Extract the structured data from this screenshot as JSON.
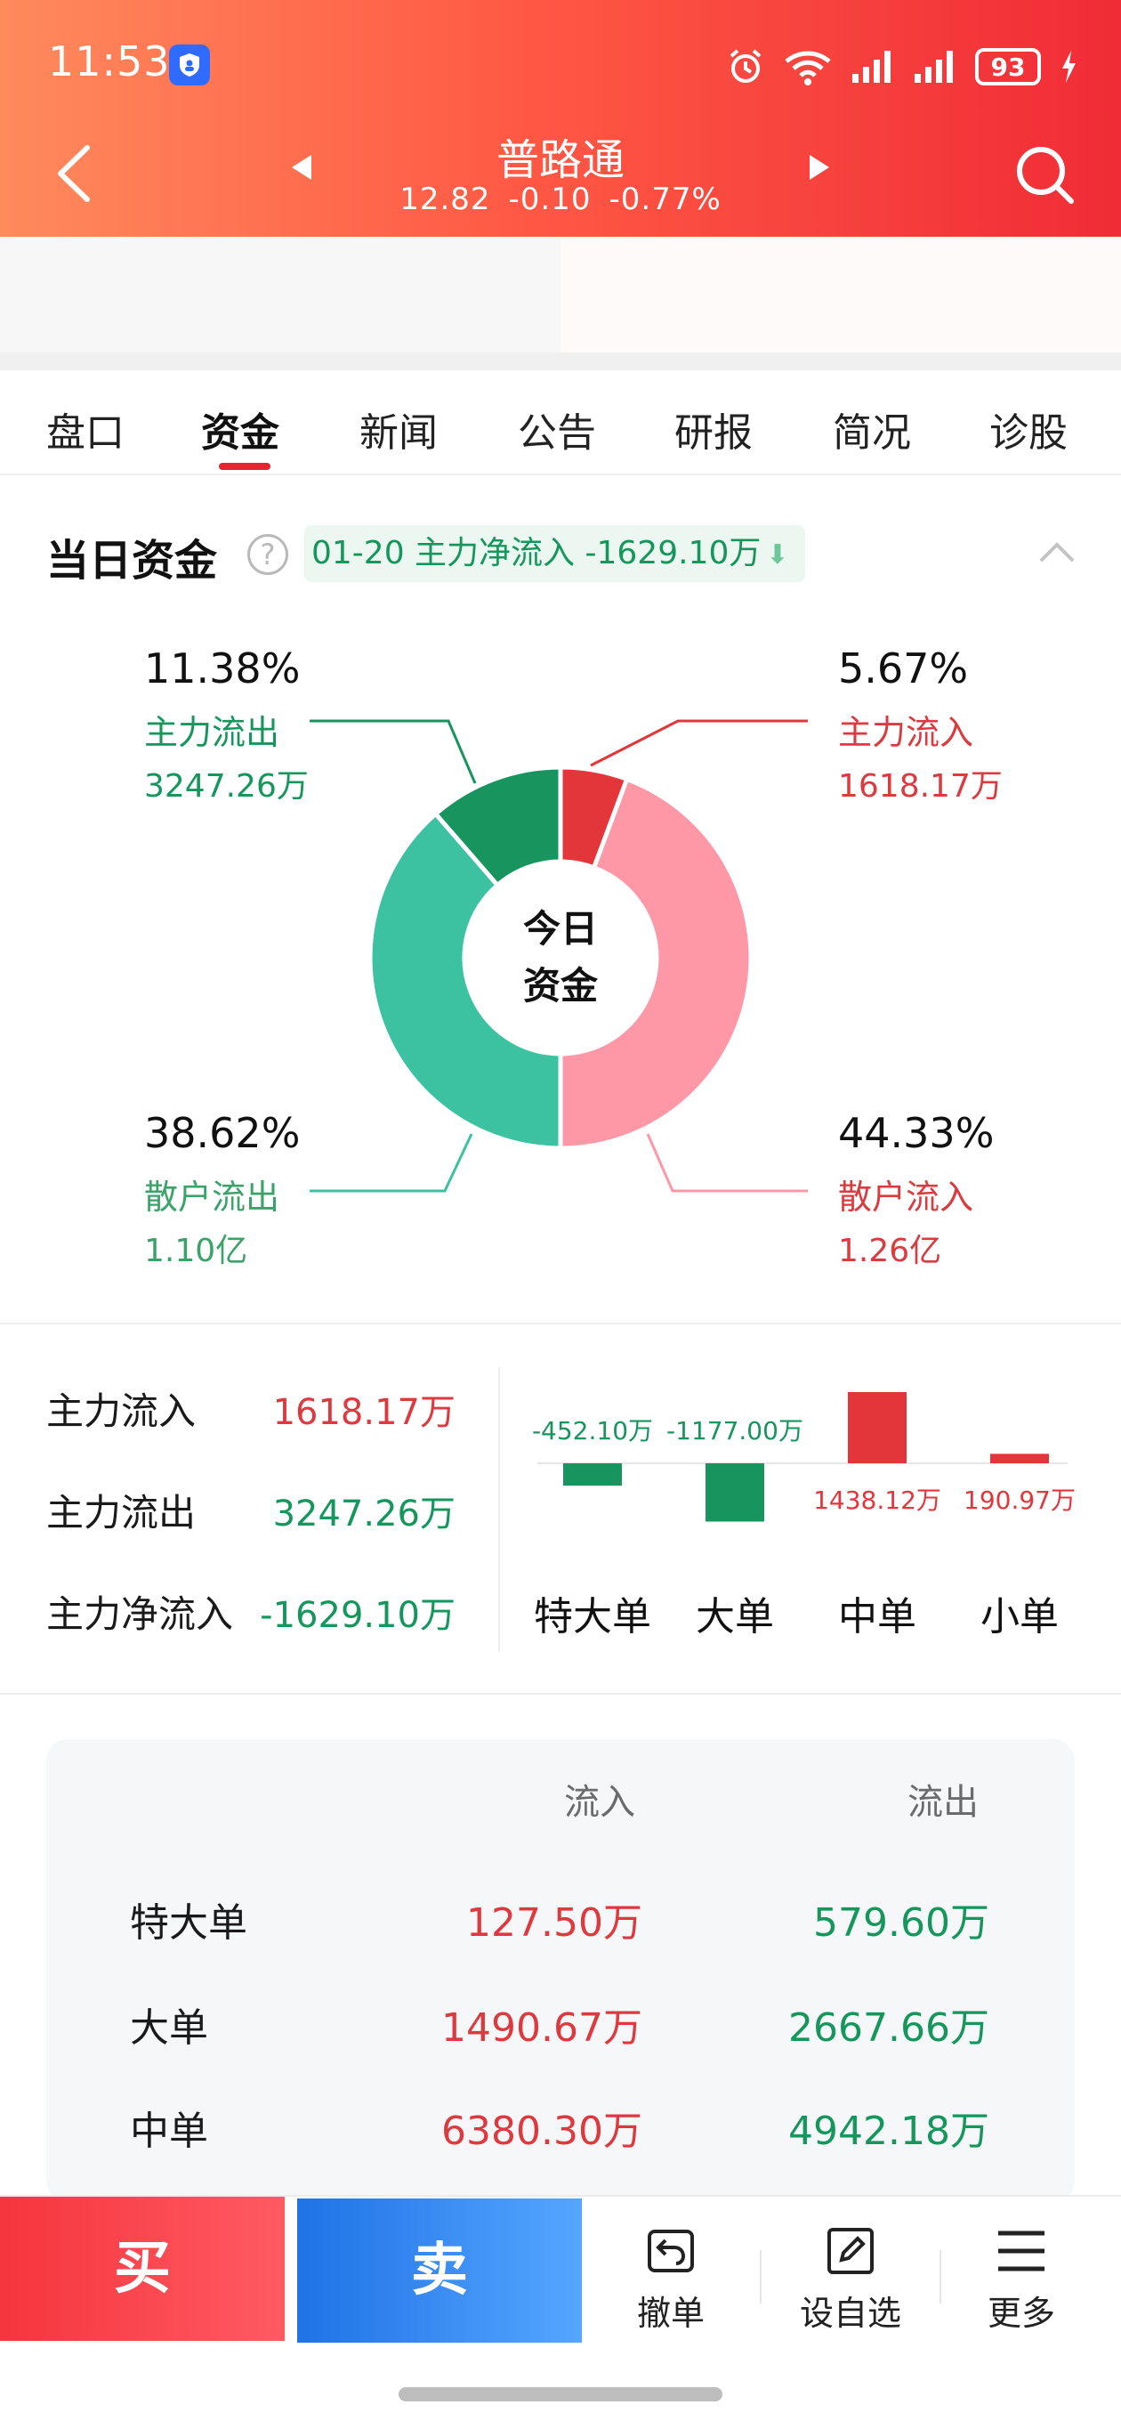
{
  "status": {
    "time": "11:53",
    "battery": "93"
  },
  "nav": {
    "title": "普路通",
    "price": "12.82",
    "change": "-0.10",
    "change_pct": "-0.77%"
  },
  "tabs": [
    "盘口",
    "资金",
    "新闻",
    "公告",
    "研报",
    "简况",
    "诊股"
  ],
  "active_tab": "资金",
  "section": {
    "title": "当日资金",
    "badge": "01-20 主力净流入 -1629.10万"
  },
  "donut": {
    "center_line1": "今日",
    "center_line2": "资金",
    "main_out": {
      "pct": "11.38%",
      "label": "主力流出",
      "amount": "3247.26万",
      "value": 11.38,
      "color": "#18955f"
    },
    "main_in": {
      "pct": "5.67%",
      "label": "主力流入",
      "amount": "1618.17万",
      "value": 5.67,
      "color": "#e3363b"
    },
    "retail_in": {
      "pct": "44.33%",
      "label": "散户流入",
      "amount": "1.26亿",
      "value": 44.33,
      "color": "#ff98a6"
    },
    "retail_out": {
      "pct": "38.62%",
      "label": "散户流出",
      "amount": "1.10亿",
      "value": 38.62,
      "color": "#3cc2a0"
    }
  },
  "summary": [
    {
      "label": "主力流入",
      "value": "1618.17万",
      "tone": "red"
    },
    {
      "label": "主力流出",
      "value": "3247.26万",
      "tone": "green"
    },
    {
      "label": "主力净流入",
      "value": "-1629.10万",
      "tone": "green"
    }
  ],
  "chart_data": {
    "type": "bar",
    "categories": [
      "特大单",
      "大单",
      "中单",
      "小单"
    ],
    "values": [
      -452.1,
      -1177.0,
      1438.12,
      190.97
    ],
    "value_labels": [
      "-452.10万",
      "-1177.00万",
      "1438.12万",
      "190.97万"
    ],
    "title": "",
    "xlabel": "",
    "ylabel": "",
    "colors": {
      "positive": "#e3363b",
      "negative": "#18955f"
    }
  },
  "table": {
    "headers": {
      "inflow": "流入",
      "outflow": "流出"
    },
    "rows": [
      {
        "name": "特大单",
        "in": "127.50万",
        "out": "579.60万"
      },
      {
        "name": "大单",
        "in": "1490.67万",
        "out": "2667.66万"
      },
      {
        "name": "中单",
        "in": "6380.30万",
        "out": "4942.18万"
      }
    ]
  },
  "bottom": {
    "buy": "买",
    "sell": "卖",
    "cancel": "撤单",
    "watchlist": "设自选",
    "more": "更多"
  }
}
